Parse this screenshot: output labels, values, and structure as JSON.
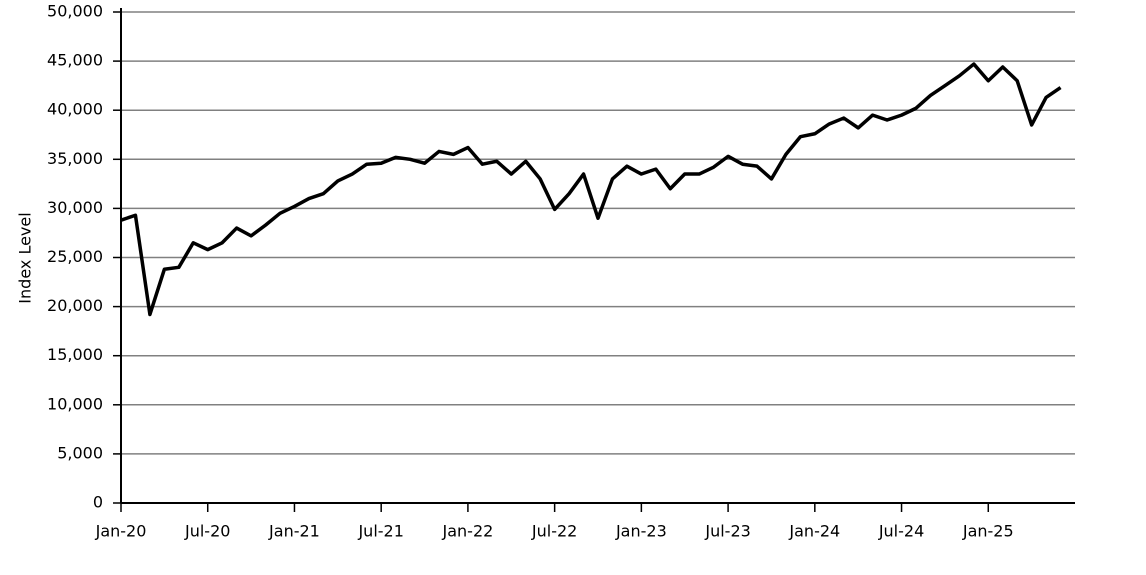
{
  "chart_data": {
    "type": "line",
    "y_label": "Index Level",
    "color": "#000000",
    "grid": true,
    "x": [
      "2020-01",
      "2020-02",
      "2020-03",
      "2020-04",
      "2020-05",
      "2020-06",
      "2020-07",
      "2020-08",
      "2020-09",
      "2020-10",
      "2020-11",
      "2020-12",
      "2021-01",
      "2021-02",
      "2021-03",
      "2021-04",
      "2021-05",
      "2021-06",
      "2021-07",
      "2021-08",
      "2021-09",
      "2021-10",
      "2021-11",
      "2021-12",
      "2022-01",
      "2022-02",
      "2022-03",
      "2022-04",
      "2022-05",
      "2022-06",
      "2022-07",
      "2022-08",
      "2022-09",
      "2022-10",
      "2022-11",
      "2022-12",
      "2023-01",
      "2023-02",
      "2023-03",
      "2023-04",
      "2023-05",
      "2023-06",
      "2023-07",
      "2023-08",
      "2023-09",
      "2023-10",
      "2023-11",
      "2023-12",
      "2024-01",
      "2024-02",
      "2024-03",
      "2024-04",
      "2024-05",
      "2024-06",
      "2024-07",
      "2024-08",
      "2024-09",
      "2024-10",
      "2024-11",
      "2024-12",
      "2025-01",
      "2025-02",
      "2025-03",
      "2025-04",
      "2025-05",
      "2025-06"
    ],
    "values": [
      28800,
      29300,
      19200,
      23800,
      24000,
      26500,
      25800,
      26500,
      28000,
      27200,
      28300,
      29500,
      30200,
      31000,
      31500,
      32800,
      33500,
      34500,
      34600,
      35200,
      35000,
      34600,
      35800,
      35500,
      36200,
      34500,
      34800,
      33500,
      34800,
      33000,
      29900,
      31500,
      33500,
      29000,
      33000,
      34300,
      33500,
      34000,
      32000,
      33500,
      33500,
      34200,
      35300,
      34500,
      34300,
      33000,
      35500,
      37300,
      37600,
      38600,
      39200,
      38200,
      39500,
      39000,
      39500,
      40200,
      41500,
      42500,
      43500,
      44700,
      43000,
      44400,
      43000,
      38500,
      41300,
      42300
    ],
    "xlim": [
      "2020-01",
      "2025-07"
    ],
    "xticks": [
      {
        "value": "2020-01",
        "label": "Jan-20"
      },
      {
        "value": "2020-07",
        "label": "Jul-20"
      },
      {
        "value": "2021-01",
        "label": "Jan-21"
      },
      {
        "value": "2021-07",
        "label": "Jul-21"
      },
      {
        "value": "2022-01",
        "label": "Jan-22"
      },
      {
        "value": "2022-07",
        "label": "Jul-22"
      },
      {
        "value": "2023-01",
        "label": "Jan-23"
      },
      {
        "value": "2023-07",
        "label": "Jul-23"
      },
      {
        "value": "2024-01",
        "label": "Jan-24"
      },
      {
        "value": "2024-07",
        "label": "Jul-24"
      },
      {
        "value": "2025-01",
        "label": "Jan-25"
      }
    ],
    "ylim": [
      0,
      50000
    ],
    "yticks": [
      0,
      {
        "value": 5000,
        "label": "5,000"
      },
      {
        "value": 10000,
        "label": "10,000"
      },
      {
        "value": 15000,
        "label": "15,000"
      },
      {
        "value": 20000,
        "label": "20,000"
      },
      {
        "value": 25000,
        "label": "25,000"
      },
      {
        "value": 30000,
        "label": "30,000"
      },
      {
        "value": 35000,
        "label": "35,000"
      },
      {
        "value": 40000,
        "label": "40,000"
      },
      {
        "value": 45000,
        "label": "45,000"
      },
      {
        "value": 50000,
        "label": "50,000"
      }
    ]
  }
}
